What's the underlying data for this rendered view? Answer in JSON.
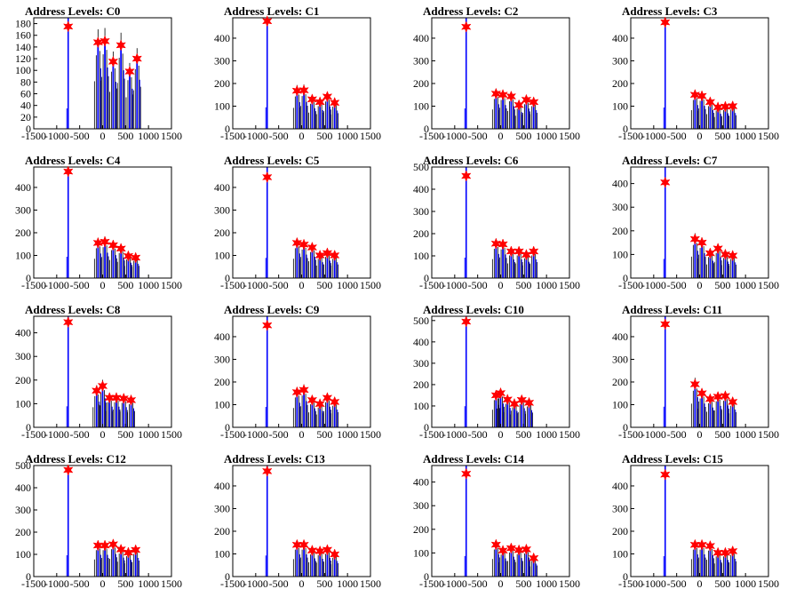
{
  "chart_data": [
    {
      "type": "bar",
      "title": "Address Levels: C0",
      "xlim": [
        -1500,
        1500
      ],
      "ylim": [
        0,
        190
      ],
      "xticks": [
        -1500,
        -1000,
        -500,
        0,
        500,
        1000,
        1500
      ],
      "xtick_labels": [
        "-1500",
        "-1000",
        "-500",
        "0",
        "500",
        "1000",
        "1500"
      ],
      "yticks": [
        0,
        20,
        40,
        60,
        80,
        100,
        120,
        140,
        160,
        180
      ],
      "ytick_labels": [
        "0",
        "20",
        "40",
        "60",
        "80",
        "100",
        "120",
        "140",
        "160",
        "180"
      ],
      "peaks": [
        {
          "x": -750,
          "y": 175
        },
        {
          "x": -100,
          "y": 148
        },
        {
          "x": 50,
          "y": 150
        },
        {
          "x": 230,
          "y": 115
        },
        {
          "x": 400,
          "y": 143
        },
        {
          "x": 590,
          "y": 98
        },
        {
          "x": 750,
          "y": 120
        }
      ]
    },
    {
      "type": "bar",
      "title": "Address Levels: C1",
      "xlim": [
        -1500,
        1500
      ],
      "ylim": [
        0,
        490
      ],
      "xticks": [
        -1500,
        -1000,
        -500,
        0,
        500,
        1000,
        1500
      ],
      "xtick_labels": [
        "-1500",
        "-1000",
        "-500",
        "0",
        "500",
        "1000",
        "1500"
      ],
      "yticks": [
        0,
        100,
        200,
        300,
        400
      ],
      "ytick_labels": [
        "0",
        "100",
        "200",
        "300",
        "400"
      ],
      "peaks": [
        {
          "x": -750,
          "y": 475
        },
        {
          "x": -100,
          "y": 168
        },
        {
          "x": 50,
          "y": 170
        },
        {
          "x": 230,
          "y": 130
        },
        {
          "x": 400,
          "y": 118
        },
        {
          "x": 560,
          "y": 142
        },
        {
          "x": 720,
          "y": 115
        }
      ]
    },
    {
      "type": "bar",
      "title": "Address Levels: C2",
      "xlim": [
        -1500,
        1500
      ],
      "ylim": [
        0,
        490
      ],
      "xticks": [
        -1500,
        -1000,
        -500,
        0,
        500,
        1000,
        1500
      ],
      "xtick_labels": [
        "-1500",
        "-1000",
        "-500",
        "0",
        "500",
        "1000",
        "1500"
      ],
      "yticks": [
        0,
        100,
        200,
        300,
        400
      ],
      "ytick_labels": [
        "0",
        "100",
        "200",
        "300",
        "400"
      ],
      "peaks": [
        {
          "x": -750,
          "y": 450
        },
        {
          "x": -100,
          "y": 155
        },
        {
          "x": 50,
          "y": 150
        },
        {
          "x": 230,
          "y": 143
        },
        {
          "x": 400,
          "y": 105
        },
        {
          "x": 560,
          "y": 128
        },
        {
          "x": 720,
          "y": 118
        }
      ]
    },
    {
      "type": "bar",
      "title": "Address Levels: C3",
      "xlim": [
        -1500,
        1500
      ],
      "ylim": [
        0,
        490
      ],
      "xticks": [
        -1500,
        -1000,
        -500,
        0,
        500,
        1000,
        1500
      ],
      "xtick_labels": [
        "-1500",
        "-1000",
        "-500",
        "0",
        "500",
        "1000",
        "1500"
      ],
      "yticks": [
        0,
        100,
        200,
        300,
        400
      ],
      "ytick_labels": [
        "0",
        "100",
        "200",
        "300",
        "400"
      ],
      "peaks": [
        {
          "x": -750,
          "y": 470
        },
        {
          "x": -100,
          "y": 150
        },
        {
          "x": 50,
          "y": 145
        },
        {
          "x": 230,
          "y": 118
        },
        {
          "x": 400,
          "y": 95
        },
        {
          "x": 560,
          "y": 98
        },
        {
          "x": 720,
          "y": 100
        }
      ]
    },
    {
      "type": "bar",
      "title": "Address Levels: C4",
      "xlim": [
        -1500,
        1500
      ],
      "ylim": [
        0,
        490
      ],
      "xticks": [
        -1500,
        -1000,
        -500,
        0,
        500,
        1000,
        1500
      ],
      "xtick_labels": [
        "-1500",
        "-1000",
        "-500",
        "0",
        "500",
        "1000",
        "1500"
      ],
      "yticks": [
        0,
        100,
        200,
        300,
        400
      ],
      "ytick_labels": [
        "0",
        "100",
        "200",
        "300",
        "400"
      ],
      "peaks": [
        {
          "x": -750,
          "y": 470
        },
        {
          "x": -100,
          "y": 155
        },
        {
          "x": 50,
          "y": 160
        },
        {
          "x": 230,
          "y": 145
        },
        {
          "x": 400,
          "y": 130
        },
        {
          "x": 560,
          "y": 97
        },
        {
          "x": 720,
          "y": 90
        }
      ]
    },
    {
      "type": "bar",
      "title": "Address Levels: C5",
      "xlim": [
        -1500,
        1500
      ],
      "ylim": [
        0,
        490
      ],
      "xticks": [
        -1500,
        -1000,
        -500,
        0,
        500,
        1000,
        1500
      ],
      "xtick_labels": [
        "-1500",
        "-1000",
        "-500",
        "0",
        "500",
        "1000",
        "1500"
      ],
      "yticks": [
        0,
        100,
        200,
        300,
        400
      ],
      "ytick_labels": [
        "0",
        "100",
        "200",
        "300",
        "400"
      ],
      "peaks": [
        {
          "x": -750,
          "y": 445
        },
        {
          "x": -100,
          "y": 155
        },
        {
          "x": 50,
          "y": 148
        },
        {
          "x": 230,
          "y": 135
        },
        {
          "x": 400,
          "y": 100
        },
        {
          "x": 560,
          "y": 110
        },
        {
          "x": 720,
          "y": 100
        }
      ]
    },
    {
      "type": "bar",
      "title": "Address Levels: C6",
      "xlim": [
        -1500,
        1500
      ],
      "ylim": [
        0,
        500
      ],
      "xticks": [
        -1500,
        -1000,
        -500,
        0,
        500,
        1000,
        1500
      ],
      "xtick_labels": [
        "-1500",
        "-1000",
        "-500",
        "0",
        "500",
        "1000",
        "1500"
      ],
      "yticks": [
        0,
        100,
        200,
        300,
        400,
        500
      ],
      "ytick_labels": [
        "0",
        "100",
        "200",
        "300",
        "400",
        "500"
      ],
      "peaks": [
        {
          "x": -750,
          "y": 460
        },
        {
          "x": -100,
          "y": 155
        },
        {
          "x": 50,
          "y": 152
        },
        {
          "x": 230,
          "y": 120
        },
        {
          "x": 400,
          "y": 120
        },
        {
          "x": 560,
          "y": 105
        },
        {
          "x": 720,
          "y": 120
        }
      ]
    },
    {
      "type": "bar",
      "title": "Address Levels: C7",
      "xlim": [
        -1500,
        1500
      ],
      "ylim": [
        0,
        470
      ],
      "xticks": [
        -1500,
        -1000,
        -500,
        0,
        500,
        1000,
        1500
      ],
      "xtick_labels": [
        "-1500",
        "-1000",
        "-500",
        "0",
        "500",
        "1000",
        "1500"
      ],
      "yticks": [
        0,
        100,
        200,
        300,
        400
      ],
      "ytick_labels": [
        "0",
        "100",
        "200",
        "300",
        "400"
      ],
      "peaks": [
        {
          "x": -750,
          "y": 405
        },
        {
          "x": -100,
          "y": 165
        },
        {
          "x": 50,
          "y": 150
        },
        {
          "x": 230,
          "y": 105
        },
        {
          "x": 400,
          "y": 125
        },
        {
          "x": 560,
          "y": 100
        },
        {
          "x": 720,
          "y": 95
        }
      ]
    },
    {
      "type": "bar",
      "title": "Address Levels: C8",
      "xlim": [
        -1500,
        1500
      ],
      "ylim": [
        0,
        470
      ],
      "xticks": [
        -1500,
        -1000,
        -500,
        0,
        500,
        1000,
        1500
      ],
      "xtick_labels": [
        "-1500",
        "-1000",
        "-500",
        "0",
        "500",
        "1000",
        "1500"
      ],
      "yticks": [
        0,
        100,
        200,
        300,
        400
      ],
      "ytick_labels": [
        "0",
        "100",
        "200",
        "300",
        "400"
      ],
      "peaks": [
        {
          "x": -750,
          "y": 445
        },
        {
          "x": -130,
          "y": 155
        },
        {
          "x": 0,
          "y": 175
        },
        {
          "x": 150,
          "y": 125
        },
        {
          "x": 300,
          "y": 125
        },
        {
          "x": 460,
          "y": 122
        },
        {
          "x": 620,
          "y": 115
        }
      ]
    },
    {
      "type": "bar",
      "title": "Address Levels: C9",
      "xlim": [
        -1500,
        1500
      ],
      "ylim": [
        0,
        490
      ],
      "xticks": [
        -1500,
        -1000,
        -500,
        0,
        500,
        1000,
        1500
      ],
      "xtick_labels": [
        "-1500",
        "-1000",
        "-500",
        "0",
        "500",
        "1000",
        "1500"
      ],
      "yticks": [
        0,
        100,
        200,
        300,
        400
      ],
      "ytick_labels": [
        "0",
        "100",
        "200",
        "300",
        "400"
      ],
      "peaks": [
        {
          "x": -750,
          "y": 450
        },
        {
          "x": -100,
          "y": 155
        },
        {
          "x": 50,
          "y": 165
        },
        {
          "x": 230,
          "y": 120
        },
        {
          "x": 400,
          "y": 103
        },
        {
          "x": 560,
          "y": 130
        },
        {
          "x": 720,
          "y": 112
        }
      ]
    },
    {
      "type": "bar",
      "title": "Address Levels: C10",
      "xlim": [
        -1500,
        1500
      ],
      "ylim": [
        0,
        520
      ],
      "xticks": [
        -1500,
        -1000,
        -500,
        0,
        500,
        1000,
        1500
      ],
      "xtick_labels": [
        "-1500",
        "-1000",
        "-500",
        "0",
        "500",
        "1000",
        "1500"
      ],
      "yticks": [
        0,
        100,
        200,
        300,
        400,
        500
      ],
      "ytick_labels": [
        "0",
        "100",
        "200",
        "300",
        "400",
        "500"
      ],
      "peaks": [
        {
          "x": -750,
          "y": 495
        },
        {
          "x": -100,
          "y": 150
        },
        {
          "x": 0,
          "y": 160
        },
        {
          "x": 150,
          "y": 130
        },
        {
          "x": 300,
          "y": 110
        },
        {
          "x": 460,
          "y": 128
        },
        {
          "x": 620,
          "y": 115
        }
      ]
    },
    {
      "type": "bar",
      "title": "Address Levels: C11",
      "xlim": [
        -1500,
        1500
      ],
      "ylim": [
        0,
        490
      ],
      "xticks": [
        -1500,
        -1000,
        -500,
        0,
        500,
        1000,
        1500
      ],
      "xtick_labels": [
        "-1500",
        "-1000",
        "-500",
        "0",
        "500",
        "1000",
        "1500"
      ],
      "yticks": [
        0,
        100,
        200,
        300,
        400
      ],
      "ytick_labels": [
        "0",
        "100",
        "200",
        "300",
        "400"
      ],
      "peaks": [
        {
          "x": -750,
          "y": 455
        },
        {
          "x": -100,
          "y": 190
        },
        {
          "x": 50,
          "y": 150
        },
        {
          "x": 230,
          "y": 125
        },
        {
          "x": 400,
          "y": 135
        },
        {
          "x": 560,
          "y": 138
        },
        {
          "x": 720,
          "y": 112
        }
      ]
    },
    {
      "type": "bar",
      "title": "Address Levels: C12",
      "xlim": [
        -1500,
        1500
      ],
      "ylim": [
        0,
        500
      ],
      "xticks": [
        -1500,
        -1000,
        -500,
        0,
        500,
        1000,
        1500
      ],
      "xtick_labels": [
        "-1500",
        "-1000",
        "-500",
        "0",
        "500",
        "1000",
        "1500"
      ],
      "yticks": [
        0,
        100,
        200,
        300,
        400,
        500
      ],
      "ytick_labels": [
        "0",
        "100",
        "200",
        "300",
        "400",
        "500"
      ],
      "peaks": [
        {
          "x": -750,
          "y": 480
        },
        {
          "x": -100,
          "y": 140
        },
        {
          "x": 50,
          "y": 140
        },
        {
          "x": 230,
          "y": 145
        },
        {
          "x": 400,
          "y": 122
        },
        {
          "x": 560,
          "y": 108
        },
        {
          "x": 720,
          "y": 120
        }
      ]
    },
    {
      "type": "bar",
      "title": "Address Levels: C13",
      "xlim": [
        -1500,
        1500
      ],
      "ylim": [
        0,
        490
      ],
      "xticks": [
        -1500,
        -1000,
        -500,
        0,
        500,
        1000,
        1500
      ],
      "xtick_labels": [
        "-1500",
        "-1000",
        "-500",
        "0",
        "500",
        "1000",
        "1500"
      ],
      "yticks": [
        0,
        100,
        200,
        300,
        400
      ],
      "ytick_labels": [
        "0",
        "100",
        "200",
        "300",
        "400"
      ],
      "peaks": [
        {
          "x": -750,
          "y": 465
        },
        {
          "x": -100,
          "y": 140
        },
        {
          "x": 50,
          "y": 140
        },
        {
          "x": 230,
          "y": 115
        },
        {
          "x": 400,
          "y": 112
        },
        {
          "x": 560,
          "y": 118
        },
        {
          "x": 720,
          "y": 98
        }
      ]
    },
    {
      "type": "bar",
      "title": "Address Levels: C14",
      "xlim": [
        -1500,
        1500
      ],
      "ylim": [
        0,
        470
      ],
      "xticks": [
        -1500,
        -1000,
        -500,
        0,
        500,
        1000,
        1500
      ],
      "xtick_labels": [
        "-1500",
        "-1000",
        "-500",
        "0",
        "500",
        "1000",
        "1500"
      ],
      "yticks": [
        0,
        100,
        200,
        300,
        400
      ],
      "ytick_labels": [
        "0",
        "100",
        "200",
        "300",
        "400"
      ],
      "peaks": [
        {
          "x": -750,
          "y": 435
        },
        {
          "x": -100,
          "y": 135
        },
        {
          "x": 50,
          "y": 110
        },
        {
          "x": 230,
          "y": 120
        },
        {
          "x": 400,
          "y": 112
        },
        {
          "x": 560,
          "y": 115
        },
        {
          "x": 720,
          "y": 78
        }
      ]
    },
    {
      "type": "bar",
      "title": "Address Levels: C15",
      "xlim": [
        -1500,
        1500
      ],
      "ylim": [
        0,
        490
      ],
      "xticks": [
        -1500,
        -1000,
        -500,
        0,
        500,
        1000,
        1500
      ],
      "xtick_labels": [
        "-1500",
        "-1000",
        "-500",
        "0",
        "500",
        "1000",
        "1500"
      ],
      "yticks": [
        0,
        100,
        200,
        300,
        400
      ],
      "ytick_labels": [
        "0",
        "100",
        "200",
        "300",
        "400"
      ],
      "peaks": [
        {
          "x": -750,
          "y": 450
        },
        {
          "x": -100,
          "y": 140
        },
        {
          "x": 50,
          "y": 140
        },
        {
          "x": 230,
          "y": 135
        },
        {
          "x": 400,
          "y": 105
        },
        {
          "x": 560,
          "y": 105
        },
        {
          "x": 720,
          "y": 112
        }
      ]
    }
  ],
  "colors": {
    "histogram_line": "#0000ff",
    "histogram_spike": "#000000",
    "peak_marker": "#ff0000",
    "axes": "#000000",
    "background": "#ffffff"
  },
  "marker_icon": "red-star-marker"
}
